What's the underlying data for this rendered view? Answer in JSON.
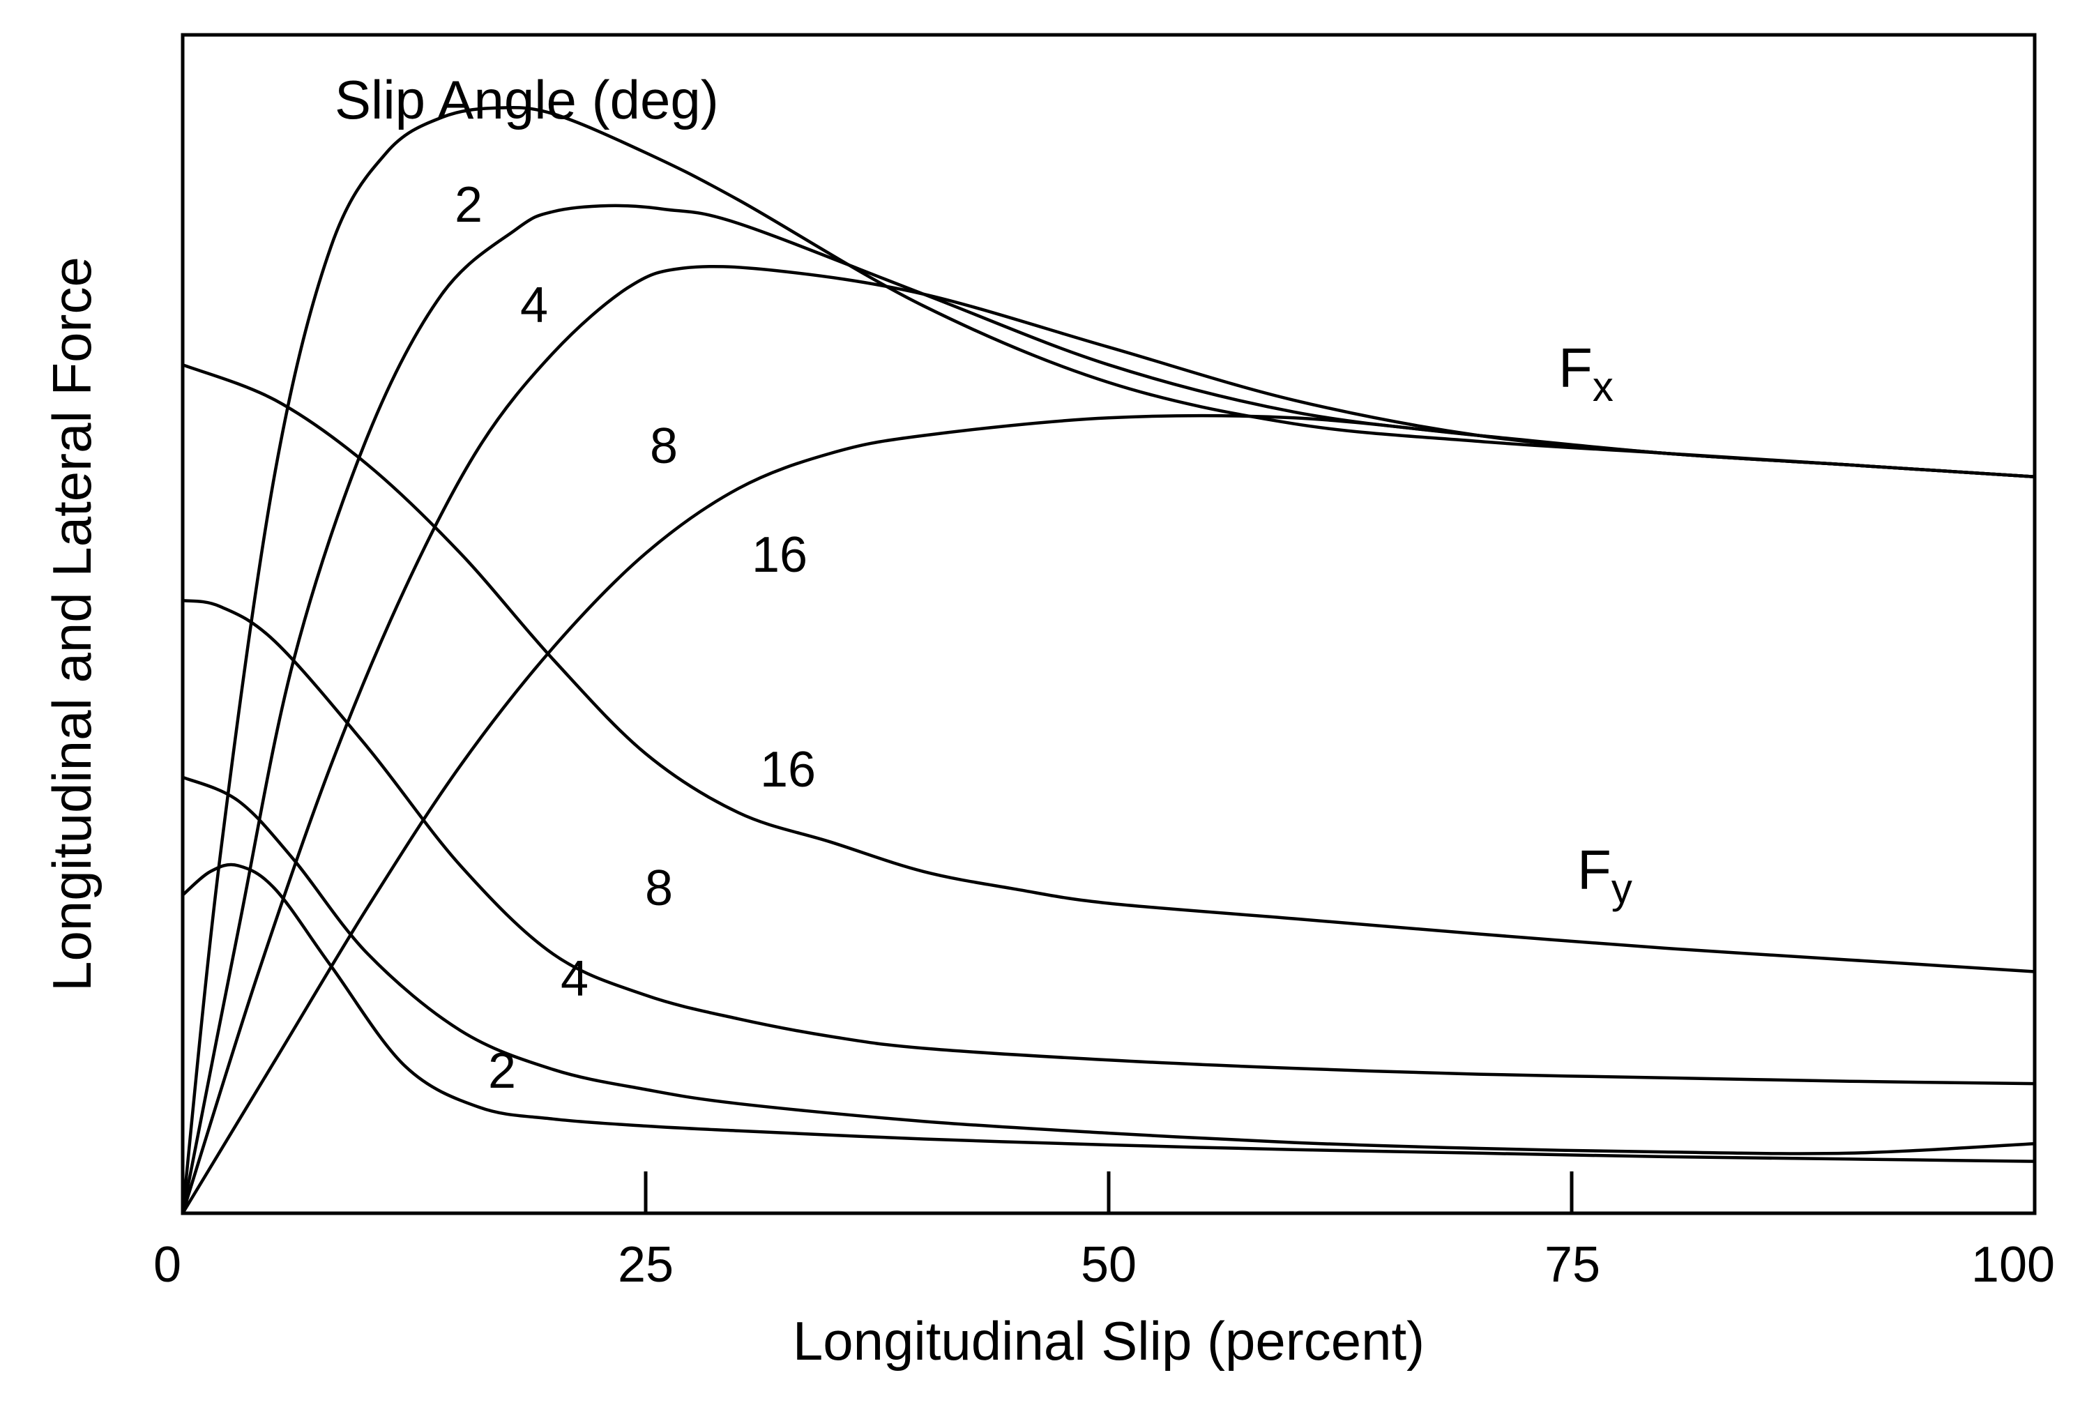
{
  "chart_data": {
    "type": "line",
    "xlabel": "Longitudinal Slip (percent)",
    "ylabel": "Longitudinal and Lateral Force",
    "xlim": [
      0,
      100
    ],
    "ylim": [
      0,
      100
    ],
    "x_ticks": [
      "0",
      "25",
      "50",
      "75",
      "100"
    ],
    "y_ticks": [],
    "grid": false,
    "legend_title": "Slip Angle (deg)",
    "group_labels": [
      {
        "main": "F",
        "sub": "x"
      },
      {
        "main": "F",
        "sub": "y"
      }
    ],
    "series": [
      {
        "name": "2",
        "group": "Fx",
        "x": [
          0,
          2,
          5,
          8,
          11,
          14,
          17,
          20,
          25,
          30,
          40,
          50,
          60,
          70,
          80,
          90,
          100
        ],
        "y": [
          0,
          30,
          63,
          82,
          90,
          93,
          93.8,
          93.3,
          90,
          86,
          77,
          70.5,
          67,
          65.5,
          64.5,
          63.5,
          62.5
        ]
      },
      {
        "name": "4",
        "group": "Fx",
        "x": [
          0,
          3,
          6,
          10,
          14,
          18,
          20,
          23,
          26,
          30,
          40,
          50,
          60,
          70,
          80,
          90,
          100
        ],
        "y": [
          0,
          24,
          47,
          66,
          78,
          83.5,
          85,
          85.5,
          85.2,
          84,
          78,
          72,
          68,
          66,
          64.5,
          63.5,
          62.5
        ]
      },
      {
        "name": "8",
        "group": "Fx",
        "x": [
          0,
          4,
          8,
          12,
          16,
          20,
          24,
          27,
          32,
          40,
          50,
          60,
          70,
          80,
          90,
          100
        ],
        "y": [
          0,
          20,
          38,
          53,
          65,
          73,
          78.5,
          80.2,
          80,
          78,
          73.5,
          69,
          66,
          64.5,
          63.5,
          62.5
        ]
      },
      {
        "name": "16",
        "group": "Fx",
        "x": [
          0,
          5,
          10,
          15,
          20,
          25,
          30,
          35,
          40,
          50,
          60,
          70,
          80,
          90,
          100
        ],
        "y": [
          0,
          13,
          26,
          38,
          48,
          56,
          61.5,
          64.5,
          66,
          67.5,
          67.5,
          66,
          64.5,
          63.5,
          62.5
        ]
      },
      {
        "name": "16",
        "group": "Fy",
        "x": [
          0,
          5,
          10,
          15,
          20,
          25,
          30,
          35,
          40,
          45,
          50,
          60,
          70,
          80,
          90,
          100
        ],
        "y": [
          72,
          69,
          63.5,
          56,
          47,
          39,
          34,
          31.5,
          29,
          27.5,
          26.3,
          25,
          23.7,
          22.5,
          21.5,
          20.5
        ]
      },
      {
        "name": "8",
        "group": "Fy",
        "x": [
          0,
          2,
          5,
          10,
          15,
          20,
          25,
          30,
          35,
          40,
          50,
          60,
          70,
          80,
          90,
          100
        ],
        "y": [
          52,
          51.5,
          48.5,
          39.5,
          29.5,
          22,
          18.5,
          16.5,
          15,
          14,
          13,
          12.3,
          11.8,
          11.5,
          11.2,
          11
        ]
      },
      {
        "name": "4",
        "group": "Fy",
        "x": [
          0,
          3,
          6,
          10,
          15,
          20,
          25,
          30,
          40,
          50,
          60,
          70,
          80,
          90,
          100
        ],
        "y": [
          37,
          35,
          30,
          22,
          15.5,
          12.2,
          10.5,
          9.3,
          7.8,
          6.8,
          6,
          5.5,
          5.2,
          5.1,
          5.9
        ]
      },
      {
        "name": "2",
        "group": "Fy",
        "x": [
          0,
          1.5,
          3,
          5,
          8,
          12,
          16,
          20,
          25,
          30,
          40,
          50,
          60,
          70,
          80,
          90,
          100
        ],
        "y": [
          27,
          29,
          29.5,
          27.5,
          21,
          12.5,
          9,
          8,
          7.4,
          7,
          6.3,
          5.8,
          5.4,
          5.1,
          4.8,
          4.6,
          4.4
        ]
      }
    ]
  }
}
